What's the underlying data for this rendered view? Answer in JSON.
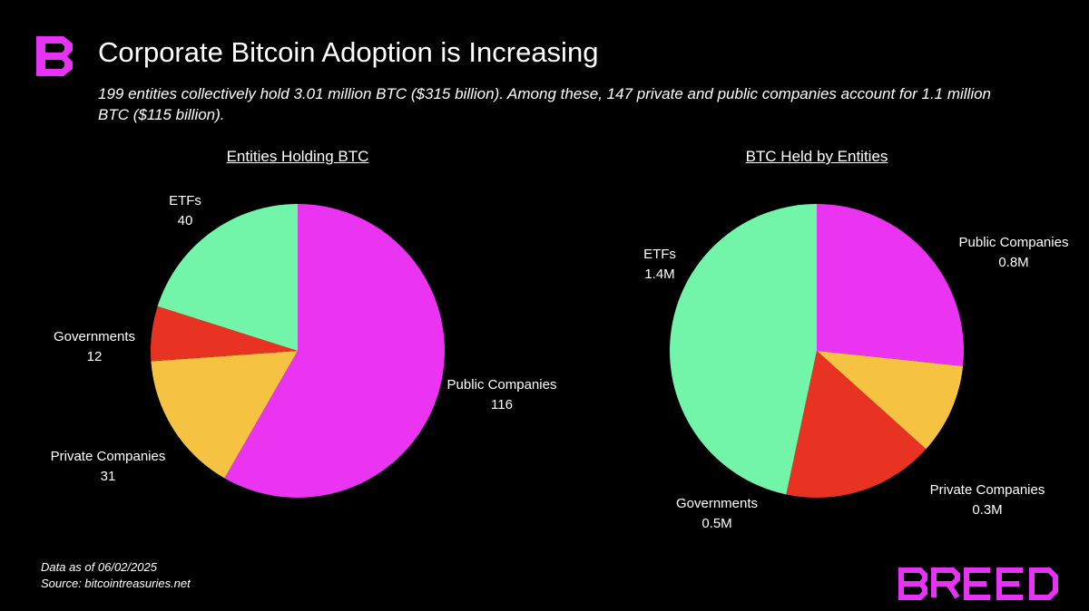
{
  "header": {
    "title": "Corporate Bitcoin Adoption is Increasing",
    "subtitle": "199 entities collectively hold 3.01 million BTC ($315 billion). Among these, 147 private and public companies account for 1.1 million BTC ($115 billion)."
  },
  "footer": {
    "date_line": "Data as of 06/02/2025",
    "source_line": "Source: bitcointreasuries.net"
  },
  "brand": {
    "name": "BREED",
    "color": "#e633f5"
  },
  "colors": {
    "Public Companies": "#eb33f2",
    "Private Companies": "#f5c242",
    "Governments": "#e83222",
    "ETFs": "#72f5a8"
  },
  "chart_data": [
    {
      "type": "pie",
      "title": "Entities Holding BTC",
      "slices": [
        {
          "name": "Public Companies",
          "value": 116,
          "label": "116"
        },
        {
          "name": "Private Companies",
          "value": 31,
          "label": "31"
        },
        {
          "name": "Governments",
          "value": 12,
          "label": "12"
        },
        {
          "name": "ETFs",
          "value": 40,
          "label": "40"
        }
      ]
    },
    {
      "type": "pie",
      "title": "BTC Held by Entities",
      "slices": [
        {
          "name": "Public Companies",
          "value": 0.8,
          "label": "0.8M"
        },
        {
          "name": "Private Companies",
          "value": 0.3,
          "label": "0.3M"
        },
        {
          "name": "Governments",
          "value": 0.5,
          "label": "0.5M"
        },
        {
          "name": "ETFs",
          "value": 1.4,
          "label": "1.4M"
        }
      ]
    }
  ]
}
